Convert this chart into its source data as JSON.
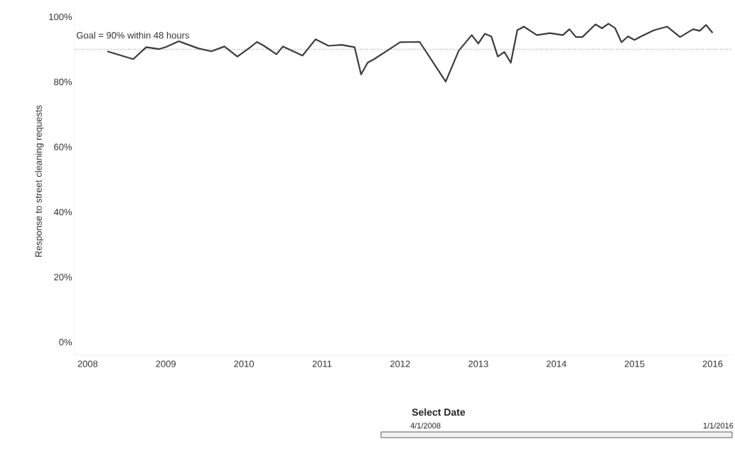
{
  "chart_data": {
    "type": "line",
    "ylabel": "Response to street cleaning requests",
    "x": [
      "2008-04",
      "2008-08",
      "2008-10",
      "2008-12",
      "2009-01",
      "2009-03",
      "2009-06",
      "2009-08",
      "2009-10",
      "2009-12",
      "2010-02",
      "2010-03",
      "2010-04",
      "2010-06",
      "2010-07",
      "2010-10",
      "2010-12",
      "2011-02",
      "2011-04",
      "2011-06",
      "2011-07",
      "2011-08",
      "2011-09",
      "2011-11",
      "2012-01",
      "2012-04",
      "2012-08",
      "2012-10",
      "2012-12",
      "2013-01",
      "2013-02",
      "2013-03",
      "2013-04",
      "2013-05",
      "2013-06",
      "2013-07",
      "2013-08",
      "2013-10",
      "2013-12",
      "2014-02",
      "2014-03",
      "2014-04",
      "2014-05",
      "2014-07",
      "2014-08",
      "2014-09",
      "2014-10",
      "2014-11",
      "2014-12",
      "2015-01",
      "2015-02",
      "2015-04",
      "2015-06",
      "2015-08",
      "2015-10",
      "2015-11",
      "2015-12",
      "2016-01"
    ],
    "series": [
      {
        "color": "#3c3c3c",
        "values": [
          89.4,
          87.0,
          90.7,
          90.1,
          90.7,
          92.5,
          90.3,
          89.4,
          90.9,
          87.8,
          90.7,
          92.3,
          91.2,
          88.5,
          90.9,
          88.1,
          93.1,
          91.1,
          91.4,
          90.7,
          82.3,
          85.9,
          87.0,
          89.6,
          92.2,
          92.3,
          80.1,
          89.6,
          94.4,
          91.8,
          94.8,
          94.0,
          87.8,
          89.2,
          85.9,
          95.9,
          97.0,
          94.4,
          95.0,
          94.4,
          96.2,
          93.8,
          93.8,
          97.7,
          96.5,
          97.9,
          96.6,
          92.2,
          94.0,
          92.9,
          94.0,
          95.9,
          97.0,
          93.8,
          96.2,
          95.7,
          97.5,
          95.1
        ]
      }
    ],
    "xlim": [
      "2007-11",
      "2016-04"
    ],
    "xticks": [
      {
        "value": "2008",
        "label": "2008"
      },
      {
        "value": "2009",
        "label": "2009"
      },
      {
        "value": "2010",
        "label": "2010"
      },
      {
        "value": "2011",
        "label": "2011"
      },
      {
        "value": "2012",
        "label": "2012"
      },
      {
        "value": "2013",
        "label": "2013"
      },
      {
        "value": "2014",
        "label": "2014"
      },
      {
        "value": "2015",
        "label": "2015"
      },
      {
        "value": "2016",
        "label": "2016"
      }
    ],
    "ylim": [
      -4,
      103
    ],
    "yticks": [
      {
        "value": 0,
        "label": "0%"
      },
      {
        "value": 20,
        "label": "20%"
      },
      {
        "value": 40,
        "label": "40%"
      },
      {
        "value": 60,
        "label": "60%"
      },
      {
        "value": 80,
        "label": "80%"
      },
      {
        "value": 100,
        "label": "100%"
      }
    ],
    "ref_lines": [
      {
        "axis": "y",
        "value": 90,
        "label": "Goal = 90% within 48 hours",
        "color": "#b4b4b4",
        "line_style": "dotted"
      }
    ],
    "grid": false,
    "marker": "none",
    "line_style": "solid",
    "annotations": [
      "Select Date",
      "4/1/2008",
      "1/1/2016"
    ]
  }
}
